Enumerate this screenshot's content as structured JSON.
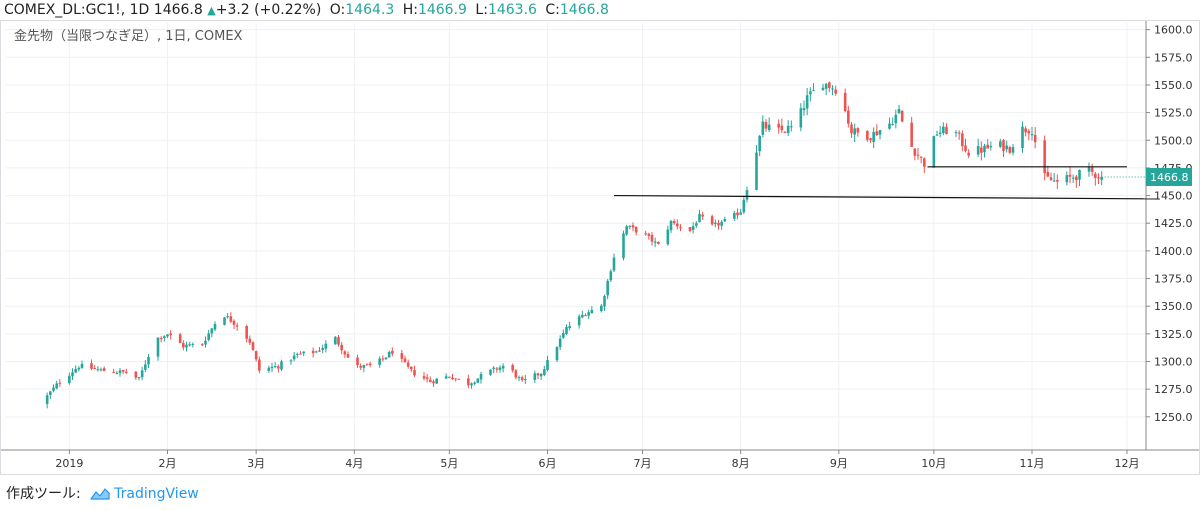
{
  "header": {
    "symbol": "COMEX_DL:GC1!, 1D",
    "last": "1466.8",
    "change_arrow": "▲",
    "change": "+3.2 (+0.22%)",
    "open_label": "O:",
    "open": "1464.3",
    "high_label": "H:",
    "high": "1466.9",
    "low_label": "L:",
    "low": "1463.6",
    "close_label": "C:",
    "close": "1466.8"
  },
  "footer": {
    "made_with": "作成ツール:",
    "brand": "TradingView"
  },
  "colors": {
    "up": "#26a69a",
    "down": "#ef5350",
    "grid": "#eef0f3",
    "axis": "#888888",
    "price_tag": "#26a69a"
  },
  "chart_data": {
    "type": "candlestick",
    "title": "金先物（当限つなぎ足）, 1日, COMEX",
    "ylim": [
      1220,
      1606
    ],
    "y_ticks": [
      "1600.0",
      "1575.0",
      "1550.0",
      "1525.0",
      "1500.0",
      "1475.0",
      "1450.0",
      "1425.0",
      "1400.0",
      "1375.0",
      "1350.0",
      "1325.0",
      "1300.0",
      "1275.0",
      "1250.0"
    ],
    "x_range_days": [
      -20,
      340
    ],
    "x_ticks": [
      {
        "label": "2019",
        "day": 0
      },
      {
        "label": "2月",
        "day": 31
      },
      {
        "label": "3月",
        "day": 59
      },
      {
        "label": "4月",
        "day": 90
      },
      {
        "label": "5月",
        "day": 120
      },
      {
        "label": "6月",
        "day": 151
      },
      {
        "label": "7月",
        "day": 181
      },
      {
        "label": "8月",
        "day": 212
      },
      {
        "label": "9月",
        "day": 243
      },
      {
        "label": "10月",
        "day": 273
      },
      {
        "label": "11月",
        "day": 304
      },
      {
        "label": "12月",
        "day": 334
      }
    ],
    "last_price_tag": "1466.8",
    "last_price": 1466.8,
    "trendlines": [
      {
        "x1_day": 172,
        "y1": 1450,
        "x2_day": 344,
        "y2": 1447
      },
      {
        "x1_day": 271,
        "y1": 1476,
        "x2_day": 334,
        "y2": 1476
      }
    ],
    "anchors": [
      {
        "day": -9,
        "price": 1262
      },
      {
        "day": -3,
        "price": 1282
      },
      {
        "day": 3,
        "price": 1296
      },
      {
        "day": 10,
        "price": 1292
      },
      {
        "day": 18,
        "price": 1290
      },
      {
        "day": 22,
        "price": 1284
      },
      {
        "day": 27,
        "price": 1320
      },
      {
        "day": 31,
        "price": 1325
      },
      {
        "day": 36,
        "price": 1314
      },
      {
        "day": 42,
        "price": 1316
      },
      {
        "day": 48,
        "price": 1344
      },
      {
        "day": 53,
        "price": 1333
      },
      {
        "day": 57,
        "price": 1318
      },
      {
        "day": 60,
        "price": 1292
      },
      {
        "day": 66,
        "price": 1296
      },
      {
        "day": 72,
        "price": 1306
      },
      {
        "day": 78,
        "price": 1309
      },
      {
        "day": 84,
        "price": 1321
      },
      {
        "day": 90,
        "price": 1295
      },
      {
        "day": 96,
        "price": 1296
      },
      {
        "day": 102,
        "price": 1309
      },
      {
        "day": 108,
        "price": 1291
      },
      {
        "day": 114,
        "price": 1282
      },
      {
        "day": 120,
        "price": 1287
      },
      {
        "day": 126,
        "price": 1280
      },
      {
        "day": 132,
        "price": 1290
      },
      {
        "day": 138,
        "price": 1297
      },
      {
        "day": 143,
        "price": 1281
      },
      {
        "day": 149,
        "price": 1290
      },
      {
        "day": 152,
        "price": 1304
      },
      {
        "day": 157,
        "price": 1330
      },
      {
        "day": 163,
        "price": 1344
      },
      {
        "day": 168,
        "price": 1350
      },
      {
        "day": 172,
        "price": 1395
      },
      {
        "day": 176,
        "price": 1422
      },
      {
        "day": 181,
        "price": 1416
      },
      {
        "day": 186,
        "price": 1405
      },
      {
        "day": 190,
        "price": 1426
      },
      {
        "day": 196,
        "price": 1418
      },
      {
        "day": 199,
        "price": 1431
      },
      {
        "day": 203,
        "price": 1422
      },
      {
        "day": 208,
        "price": 1428
      },
      {
        "day": 212,
        "price": 1436
      },
      {
        "day": 215,
        "price": 1470
      },
      {
        "day": 219,
        "price": 1513
      },
      {
        "day": 224,
        "price": 1508
      },
      {
        "day": 229,
        "price": 1512
      },
      {
        "day": 233,
        "price": 1538
      },
      {
        "day": 238,
        "price": 1552
      },
      {
        "day": 243,
        "price": 1545
      },
      {
        "day": 247,
        "price": 1508
      },
      {
        "day": 253,
        "price": 1504
      },
      {
        "day": 259,
        "price": 1515
      },
      {
        "day": 262,
        "price": 1526
      },
      {
        "day": 265,
        "price": 1498
      },
      {
        "day": 270,
        "price": 1479
      },
      {
        "day": 274,
        "price": 1507
      },
      {
        "day": 279,
        "price": 1510
      },
      {
        "day": 284,
        "price": 1489
      },
      {
        "day": 289,
        "price": 1492
      },
      {
        "day": 293,
        "price": 1496
      },
      {
        "day": 297,
        "price": 1493
      },
      {
        "day": 301,
        "price": 1510
      },
      {
        "day": 304,
        "price": 1510
      },
      {
        "day": 308,
        "price": 1466
      },
      {
        "day": 312,
        "price": 1462
      },
      {
        "day": 318,
        "price": 1468
      },
      {
        "day": 322,
        "price": 1472
      },
      {
        "day": 326,
        "price": 1466.8
      }
    ]
  }
}
